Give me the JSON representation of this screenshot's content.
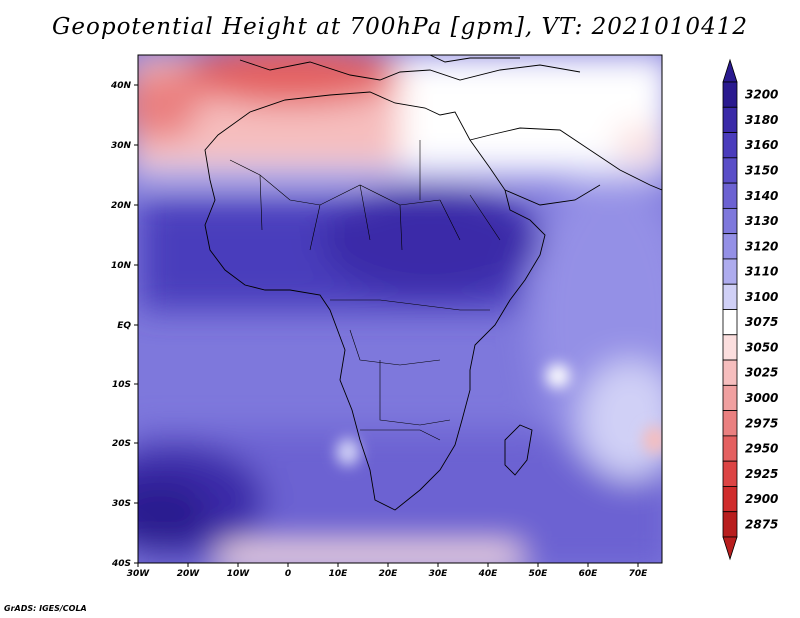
{
  "title": "Geopotential Height at 700hPa [gpm], VT: 2021010412",
  "credit": "GrADS: IGES/COLA",
  "axes": {
    "lon_labels": [
      "30W",
      "20W",
      "10W",
      "0",
      "10E",
      "20E",
      "30E",
      "40E",
      "50E",
      "60E",
      "70E"
    ],
    "lat_labels": [
      "40N",
      "30N",
      "20N",
      "10N",
      "EQ",
      "10S",
      "20S",
      "30S",
      "40S"
    ]
  },
  "colorbar": {
    "levels": [
      "3200",
      "3180",
      "3160",
      "3150",
      "3140",
      "3130",
      "3120",
      "3110",
      "3100",
      "3075",
      "3050",
      "3025",
      "3000",
      "2975",
      "2950",
      "2925",
      "2900",
      "2875"
    ],
    "colors": [
      "#2a1a8f",
      "#3a2aa8",
      "#4a3cbc",
      "#5a4ec8",
      "#6c62d2",
      "#7e78dc",
      "#9490e6",
      "#aeacee",
      "#d0d0f6",
      "#ffffff",
      "#fbdede",
      "#f6bebe",
      "#f0a0a0",
      "#ea8080",
      "#e46060",
      "#dc4444",
      "#d02c2c",
      "#b81e1e"
    ]
  },
  "map": {
    "projection": "lat-lon",
    "lon_range": [
      -30,
      75
    ],
    "lat_range": [
      -40,
      45
    ],
    "field": "Geopotential Height 700hPa",
    "units": "gpm"
  }
}
